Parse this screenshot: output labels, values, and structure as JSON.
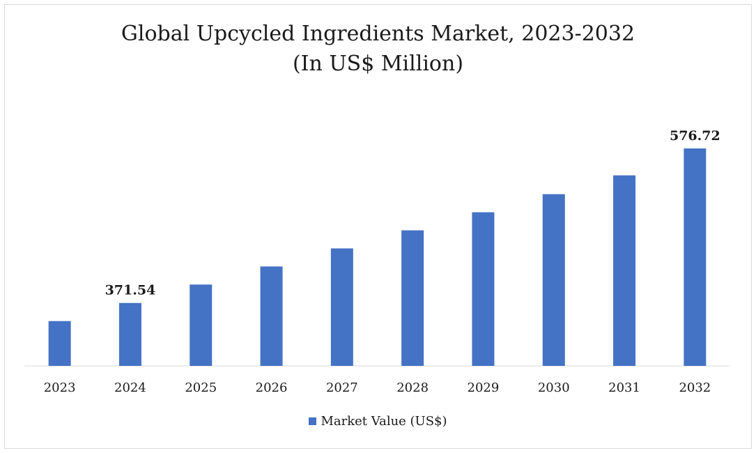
{
  "chart_data": {
    "type": "bar",
    "title": "Global Upcycled Ingredients Market, 2023-2032",
    "subtitle": "(In US$ Million)",
    "categories": [
      "2023",
      "2024",
      "2025",
      "2026",
      "2027",
      "2028",
      "2029",
      "2030",
      "2031",
      "2032"
    ],
    "series": [
      {
        "name": "Market Value (US$)",
        "values": [
          347.5,
          371.54,
          396.0,
          420.0,
          444.0,
          468.0,
          492.0,
          516.0,
          541.0,
          576.72
        ],
        "color": "#4472c4"
      }
    ],
    "data_labels": [
      {
        "index": 1,
        "text": "371.54"
      },
      {
        "index": 9,
        "text": "576.72"
      }
    ],
    "ylim": [
      288,
      576.72
    ],
    "grid": false,
    "legend_position": "bottom"
  }
}
